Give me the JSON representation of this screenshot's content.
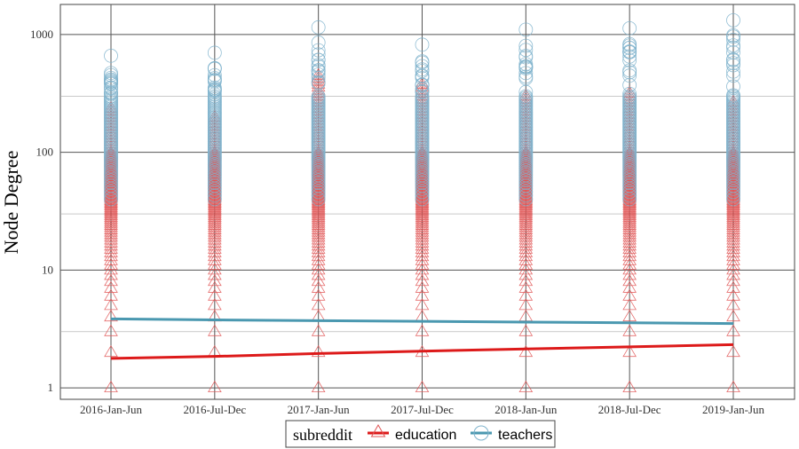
{
  "chart_data": {
    "type": "scatter",
    "title": "",
    "xlabel": "",
    "ylabel": "Node Degree",
    "y_scale": "log",
    "ylim": [
      0.8,
      1800
    ],
    "y_ticks": [
      1,
      10,
      100,
      1000
    ],
    "y_tick_labels": [
      "1",
      "10",
      "100",
      "1000"
    ],
    "categories": [
      "2016-Jan-Jun",
      "2016-Jul-Dec",
      "2017-Jan-Jun",
      "2017-Jul-Dec",
      "2018-Jan-Jun",
      "2018-Jul-Dec",
      "2019-Jan-Jun"
    ],
    "grid": true,
    "legend": {
      "title": "subreddit",
      "position": "bottom"
    },
    "series": [
      {
        "name": "education",
        "marker": "triangle",
        "color": "#e05555",
        "line_color": "#dd1a1a",
        "max_values": [
          250,
          200,
          470,
          400,
          300,
          320,
          280
        ],
        "trend": [
          1.78,
          1.85,
          1.96,
          2.05,
          2.14,
          2.23,
          2.33
        ]
      },
      {
        "name": "teachers",
        "marker": "circle",
        "color": "#7fb3cc",
        "line_color": "#4a98b0",
        "max_values": [
          660,
          700,
          1150,
          820,
          1100,
          1130,
          1320
        ],
        "trend": [
          3.85,
          3.78,
          3.72,
          3.67,
          3.62,
          3.57,
          3.52
        ]
      }
    ]
  }
}
